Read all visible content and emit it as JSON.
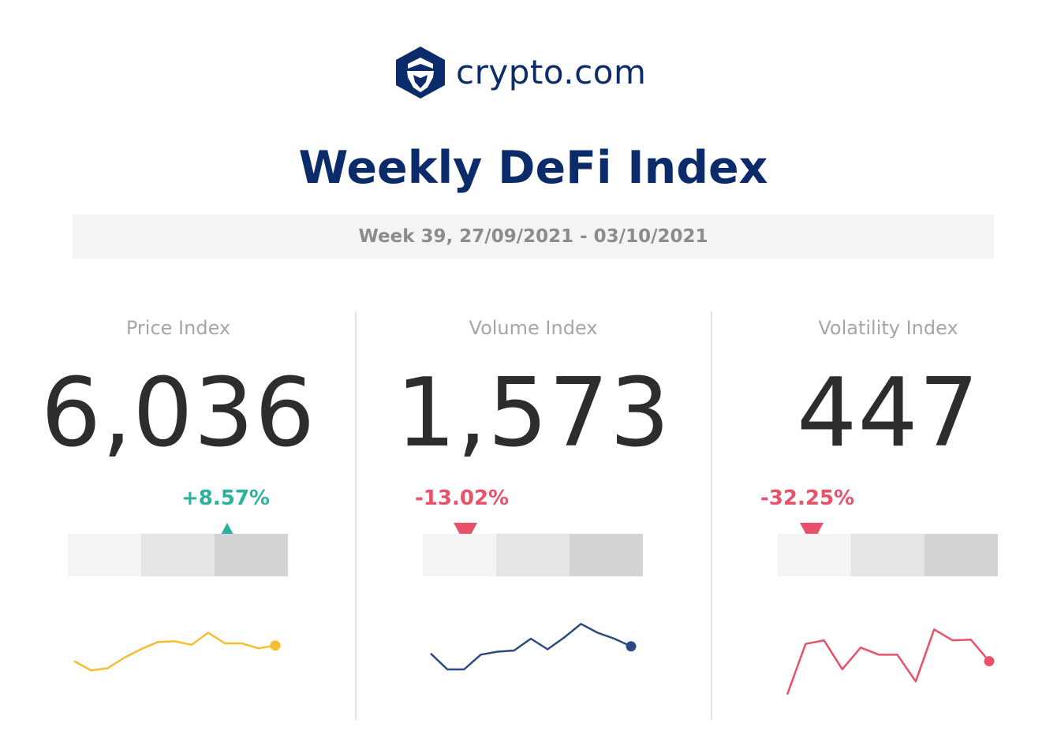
{
  "brand": {
    "name": "crypto.com",
    "logo_icon": "crypto-com-lion-shield-icon",
    "color": "#0c2b6b"
  },
  "title": "Weekly DeFi Index",
  "week": "Week 39, 27/09/2021 - 03/10/2021",
  "panels": [
    {
      "label": "Price Index",
      "value": "6,036",
      "change": "+8.57%",
      "direction": "up",
      "change_color": "#2ab39a",
      "line_color": "#f6bd31",
      "indicator_band": 3
    },
    {
      "label": "Volume Index",
      "value": "1,573",
      "change": "-13.02%",
      "direction": "down",
      "change_color": "#e9516a",
      "line_color": "#2c4a82",
      "indicator_band": 1
    },
    {
      "label": "Volatility Index",
      "value": "447",
      "change": "-32.25%",
      "direction": "down",
      "change_color": "#e9516a",
      "line_color": "#e9516a",
      "indicator_band": 1
    }
  ],
  "chart_data": [
    {
      "type": "line",
      "values": [
        35,
        22,
        25,
        40,
        52,
        62,
        63,
        58,
        75,
        60,
        60,
        53,
        57
      ],
      "ylim": [
        0,
        100
      ],
      "grid": false
    },
    {
      "type": "line",
      "values": [
        55,
        28,
        28,
        53,
        58,
        60,
        80,
        62,
        82,
        105,
        90,
        80,
        67
      ],
      "ylim": [
        0,
        120
      ],
      "grid": false
    },
    {
      "type": "line",
      "values": [
        10,
        80,
        85,
        45,
        75,
        65,
        65,
        28,
        100,
        85,
        86,
        56
      ],
      "ylim": [
        0,
        120
      ],
      "grid": false
    }
  ]
}
